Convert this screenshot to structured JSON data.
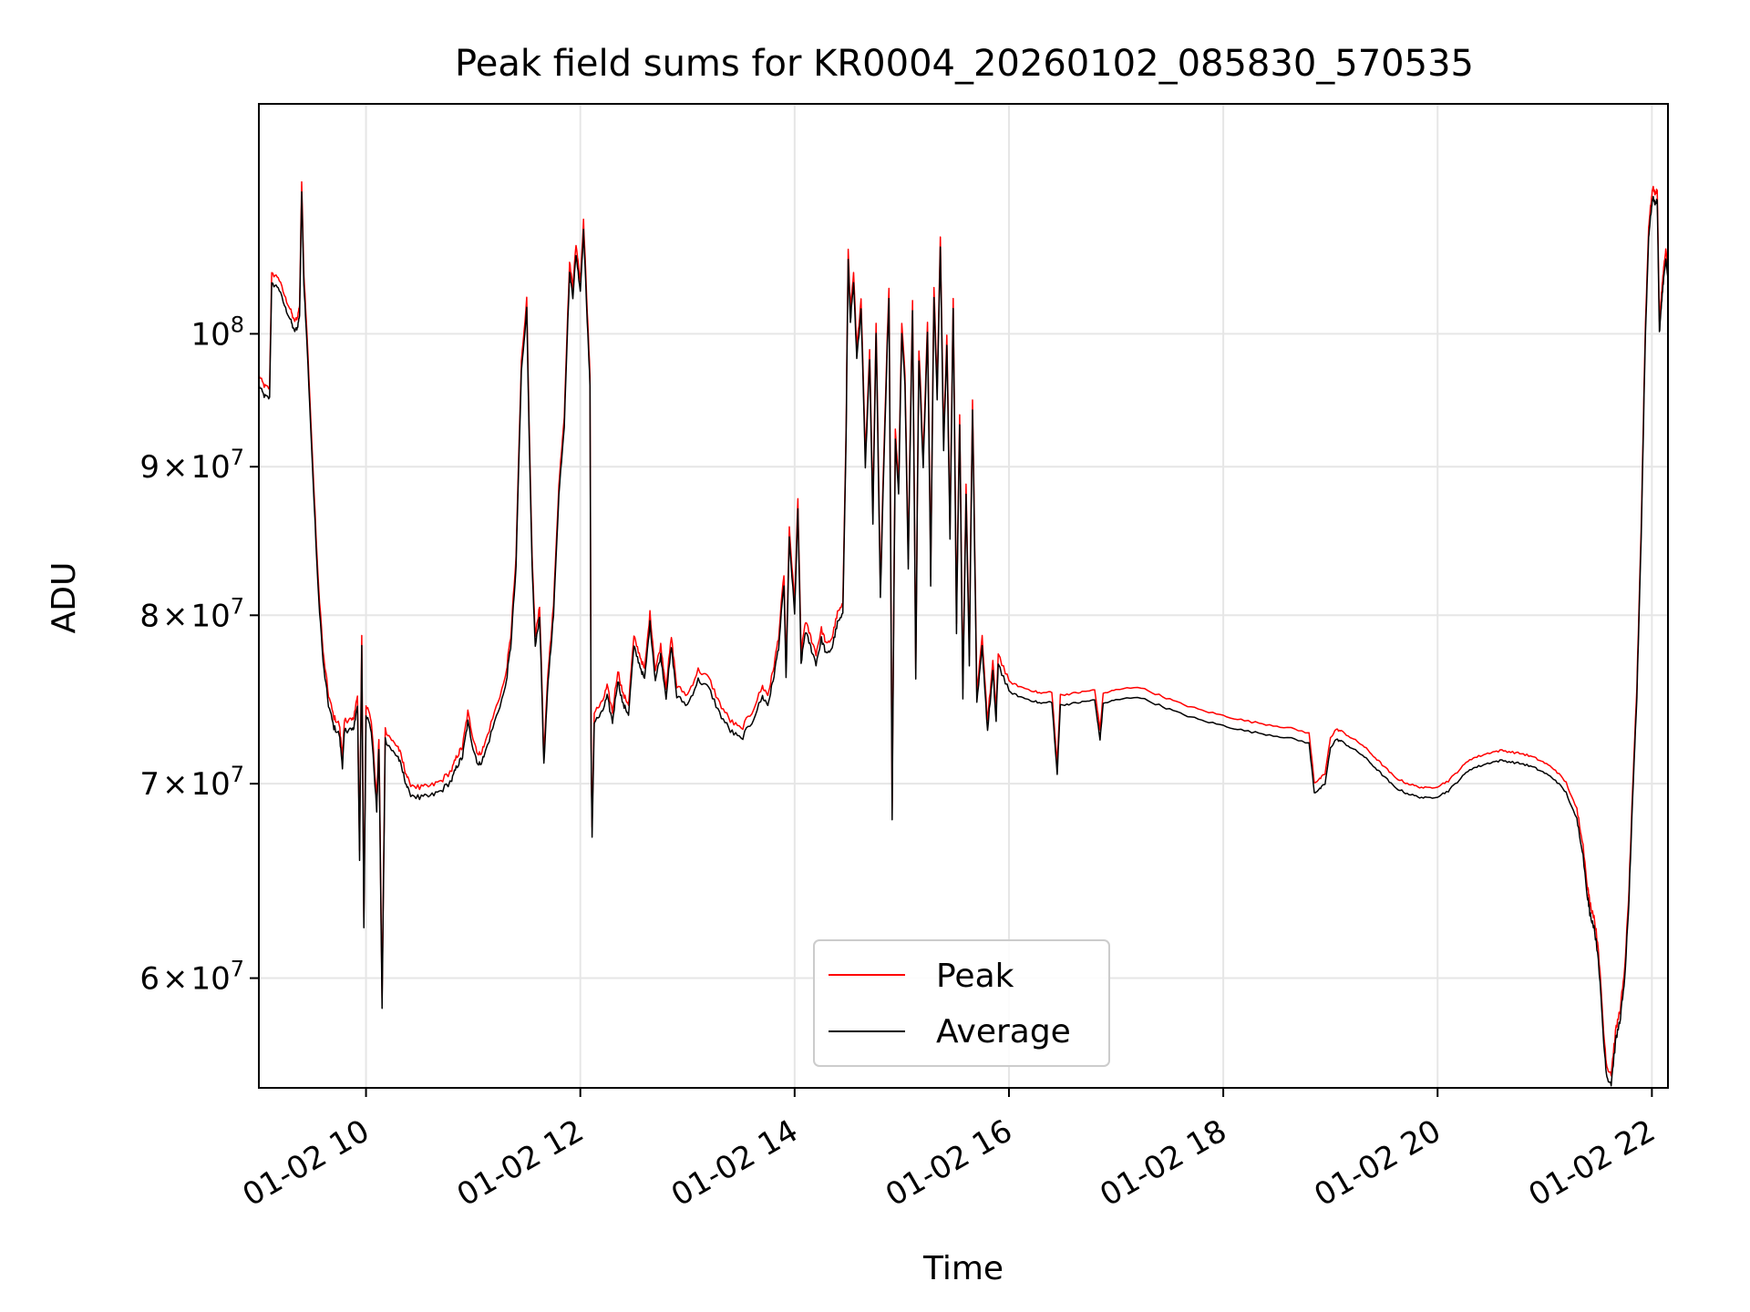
{
  "chart_data": {
    "type": "line",
    "title": "Peak field sums for KR0004_20260102_085830_570535",
    "xlabel": "Time",
    "ylabel": "ADU",
    "yscale": "log",
    "xlim_hours": [
      9.0,
      22.15
    ],
    "ylim": [
      55000000,
      120000000
    ],
    "grid": true,
    "legend_position": "lower-center",
    "x_ticks": [
      {
        "hour": 10,
        "label": "01-02 10"
      },
      {
        "hour": 12,
        "label": "01-02 12"
      },
      {
        "hour": 14,
        "label": "01-02 14"
      },
      {
        "hour": 16,
        "label": "01-02 16"
      },
      {
        "hour": 18,
        "label": "01-02 18"
      },
      {
        "hour": 20,
        "label": "01-02 20"
      },
      {
        "hour": 22,
        "label": "01-02 22"
      }
    ],
    "y_ticks": [
      {
        "value": 60000000,
        "base": "6",
        "exp": "7"
      },
      {
        "value": 70000000,
        "base": "7",
        "exp": "7"
      },
      {
        "value": 80000000,
        "base": "8",
        "exp": "7"
      },
      {
        "value": 90000000,
        "base": "9",
        "exp": "7"
      },
      {
        "value": 100000000,
        "base": "10",
        "exp": "8",
        "plain": true
      }
    ],
    "y_tick_times": "×",
    "series": [
      {
        "name": "Peak",
        "color": "#ff0000",
        "offset_frac": 0.008
      },
      {
        "name": "Average",
        "color": "#000000",
        "offset_frac": 0.0
      }
    ],
    "average_points": [
      [
        9.0,
        96.0
      ],
      [
        9.05,
        95.2
      ],
      [
        9.1,
        95.0
      ],
      [
        9.12,
        104.0
      ],
      [
        9.18,
        103.8
      ],
      [
        9.25,
        102.0
      ],
      [
        9.3,
        101.0
      ],
      [
        9.33,
        100.2
      ],
      [
        9.36,
        100.5
      ],
      [
        9.38,
        101.5
      ],
      [
        9.4,
        112.0
      ],
      [
        9.42,
        104.0
      ],
      [
        9.45,
        99.0
      ],
      [
        9.5,
        90.0
      ],
      [
        9.55,
        82.0
      ],
      [
        9.6,
        77.0
      ],
      [
        9.65,
        74.5
      ],
      [
        9.7,
        73.2
      ],
      [
        9.75,
        72.8
      ],
      [
        9.78,
        71.0
      ],
      [
        9.8,
        73.0
      ],
      [
        9.85,
        73.1
      ],
      [
        9.88,
        73.0
      ],
      [
        9.92,
        74.5
      ],
      [
        9.94,
        66.0
      ],
      [
        9.96,
        78.0
      ],
      [
        9.98,
        62.5
      ],
      [
        10.0,
        74.0
      ],
      [
        10.05,
        73.0
      ],
      [
        10.1,
        68.5
      ],
      [
        10.12,
        72.0
      ],
      [
        10.15,
        58.5
      ],
      [
        10.18,
        72.5
      ],
      [
        10.25,
        71.8
      ],
      [
        10.3,
        71.5
      ],
      [
        10.35,
        70.5
      ],
      [
        10.4,
        69.5
      ],
      [
        10.5,
        69.2
      ],
      [
        10.6,
        69.3
      ],
      [
        10.7,
        69.6
      ],
      [
        10.8,
        70.2
      ],
      [
        10.85,
        71.0
      ],
      [
        10.9,
        71.5
      ],
      [
        10.95,
        73.5
      ],
      [
        11.0,
        72.0
      ],
      [
        11.05,
        71.0
      ],
      [
        11.1,
        71.5
      ],
      [
        11.2,
        73.5
      ],
      [
        11.3,
        75.5
      ],
      [
        11.35,
        78.0
      ],
      [
        11.4,
        83.0
      ],
      [
        11.45,
        97.0
      ],
      [
        11.5,
        102.0
      ],
      [
        11.52,
        93.0
      ],
      [
        11.55,
        83.0
      ],
      [
        11.58,
        78.0
      ],
      [
        11.62,
        80.0
      ],
      [
        11.66,
        71.0
      ],
      [
        11.7,
        76.0
      ],
      [
        11.75,
        80.0
      ],
      [
        11.8,
        88.0
      ],
      [
        11.85,
        93.0
      ],
      [
        11.9,
        105.0
      ],
      [
        11.93,
        103.0
      ],
      [
        11.96,
        106.5
      ],
      [
        12.0,
        103.5
      ],
      [
        12.03,
        108.5
      ],
      [
        12.06,
        102.0
      ],
      [
        12.09,
        96.0
      ],
      [
        12.1,
        72.0
      ],
      [
        12.11,
        67.0
      ],
      [
        12.13,
        73.5
      ],
      [
        12.2,
        74.0
      ],
      [
        12.25,
        75.0
      ],
      [
        12.3,
        73.5
      ],
      [
        12.35,
        76.0
      ],
      [
        12.4,
        74.5
      ],
      [
        12.45,
        74.0
      ],
      [
        12.5,
        78.0
      ],
      [
        12.55,
        77.0
      ],
      [
        12.6,
        76.0
      ],
      [
        12.65,
        79.5
      ],
      [
        12.7,
        76.0
      ],
      [
        12.75,
        77.5
      ],
      [
        12.8,
        75.0
      ],
      [
        12.85,
        78.0
      ],
      [
        12.9,
        75.0
      ],
      [
        13.0,
        74.5
      ],
      [
        13.1,
        76.0
      ],
      [
        13.2,
        75.5
      ],
      [
        13.3,
        74.0
      ],
      [
        13.4,
        73.0
      ],
      [
        13.5,
        72.5
      ],
      [
        13.6,
        73.5
      ],
      [
        13.7,
        75.0
      ],
      [
        13.75,
        74.5
      ],
      [
        13.8,
        76.0
      ],
      [
        13.85,
        78.0
      ],
      [
        13.9,
        82.0
      ],
      [
        13.92,
        76.0
      ],
      [
        13.95,
        85.0
      ],
      [
        14.0,
        80.0
      ],
      [
        14.03,
        87.0
      ],
      [
        14.06,
        77.0
      ],
      [
        14.1,
        79.0
      ],
      [
        14.15,
        78.0
      ],
      [
        14.2,
        77.0
      ],
      [
        14.25,
        78.5
      ],
      [
        14.3,
        77.5
      ],
      [
        14.35,
        78.0
      ],
      [
        14.4,
        79.5
      ],
      [
        14.45,
        80.0
      ],
      [
        14.48,
        92.0
      ],
      [
        14.5,
        106.0
      ],
      [
        14.52,
        101.0
      ],
      [
        14.55,
        104.0
      ],
      [
        14.58,
        98.0
      ],
      [
        14.62,
        102.0
      ],
      [
        14.66,
        90.0
      ],
      [
        14.7,
        98.0
      ],
      [
        14.73,
        86.0
      ],
      [
        14.76,
        100.0
      ],
      [
        14.8,
        81.0
      ],
      [
        14.85,
        95.0
      ],
      [
        14.88,
        103.0
      ],
      [
        14.91,
        68.0
      ],
      [
        14.94,
        92.0
      ],
      [
        14.97,
        88.0
      ],
      [
        15.0,
        100.0
      ],
      [
        15.03,
        96.0
      ],
      [
        15.06,
        83.0
      ],
      [
        15.1,
        102.0
      ],
      [
        15.13,
        76.0
      ],
      [
        15.16,
        98.0
      ],
      [
        15.2,
        90.0
      ],
      [
        15.24,
        100.0
      ],
      [
        15.27,
        82.0
      ],
      [
        15.3,
        103.0
      ],
      [
        15.33,
        95.0
      ],
      [
        15.36,
        107.0
      ],
      [
        15.39,
        91.0
      ],
      [
        15.42,
        99.0
      ],
      [
        15.45,
        85.0
      ],
      [
        15.48,
        102.0
      ],
      [
        15.51,
        79.0
      ],
      [
        15.54,
        93.0
      ],
      [
        15.57,
        75.0
      ],
      [
        15.6,
        88.0
      ],
      [
        15.63,
        77.0
      ],
      [
        15.66,
        94.0
      ],
      [
        15.7,
        74.5
      ],
      [
        15.75,
        78.0
      ],
      [
        15.8,
        73.0
      ],
      [
        15.85,
        76.5
      ],
      [
        15.88,
        73.5
      ],
      [
        15.9,
        77.0
      ],
      [
        16.0,
        75.3
      ],
      [
        16.1,
        75.0
      ],
      [
        16.2,
        74.8
      ],
      [
        16.3,
        74.6
      ],
      [
        16.4,
        74.7
      ],
      [
        16.45,
        70.5
      ],
      [
        16.48,
        74.5
      ],
      [
        16.6,
        74.6
      ],
      [
        16.7,
        74.7
      ],
      [
        16.8,
        74.8
      ],
      [
        16.85,
        72.5
      ],
      [
        16.88,
        74.6
      ],
      [
        17.0,
        74.8
      ],
      [
        17.2,
        75.0
      ],
      [
        17.4,
        74.5
      ],
      [
        17.6,
        74.0
      ],
      [
        17.8,
        73.6
      ],
      [
        18.0,
        73.3
      ],
      [
        18.2,
        73.0
      ],
      [
        18.4,
        72.8
      ],
      [
        18.6,
        72.6
      ],
      [
        18.8,
        72.3
      ],
      [
        18.85,
        69.5
      ],
      [
        18.9,
        69.7
      ],
      [
        18.95,
        70.0
      ],
      [
        19.0,
        72.0
      ],
      [
        19.05,
        72.5
      ],
      [
        19.1,
        72.4
      ],
      [
        19.2,
        72.0
      ],
      [
        19.3,
        71.6
      ],
      [
        19.4,
        71.0
      ],
      [
        19.5,
        70.4
      ],
      [
        19.6,
        69.8
      ],
      [
        19.7,
        69.5
      ],
      [
        19.8,
        69.3
      ],
      [
        19.9,
        69.2
      ],
      [
        20.0,
        69.3
      ],
      [
        20.1,
        69.6
      ],
      [
        20.2,
        70.2
      ],
      [
        20.3,
        70.8
      ],
      [
        20.4,
        71.0
      ],
      [
        20.5,
        71.2
      ],
      [
        20.6,
        71.3
      ],
      [
        20.7,
        71.2
      ],
      [
        20.8,
        71.1
      ],
      [
        20.9,
        70.9
      ],
      [
        21.0,
        70.6
      ],
      [
        21.1,
        70.2
      ],
      [
        21.2,
        69.5
      ],
      [
        21.3,
        68.0
      ],
      [
        21.35,
        66.5
      ],
      [
        21.4,
        64.0
      ],
      [
        21.42,
        63.2
      ],
      [
        21.46,
        62.5
      ],
      [
        21.5,
        61.0
      ],
      [
        21.55,
        57.0
      ],
      [
        21.58,
        55.5
      ],
      [
        21.62,
        55.2
      ],
      [
        21.66,
        57.0
      ],
      [
        21.7,
        58.0
      ],
      [
        21.74,
        59.5
      ],
      [
        21.78,
        63.0
      ],
      [
        21.82,
        69.0
      ],
      [
        21.86,
        75.0
      ],
      [
        21.9,
        85.0
      ],
      [
        21.94,
        100.0
      ],
      [
        21.97,
        108.0
      ],
      [
        21.99,
        110.0
      ],
      [
        22.01,
        111.5
      ],
      [
        22.03,
        110.8
      ],
      [
        22.05,
        111.3
      ],
      [
        22.07,
        100.0
      ],
      [
        22.09,
        102.5
      ],
      [
        22.11,
        104.5
      ],
      [
        22.13,
        106.0
      ],
      [
        22.15,
        104.5
      ]
    ]
  }
}
